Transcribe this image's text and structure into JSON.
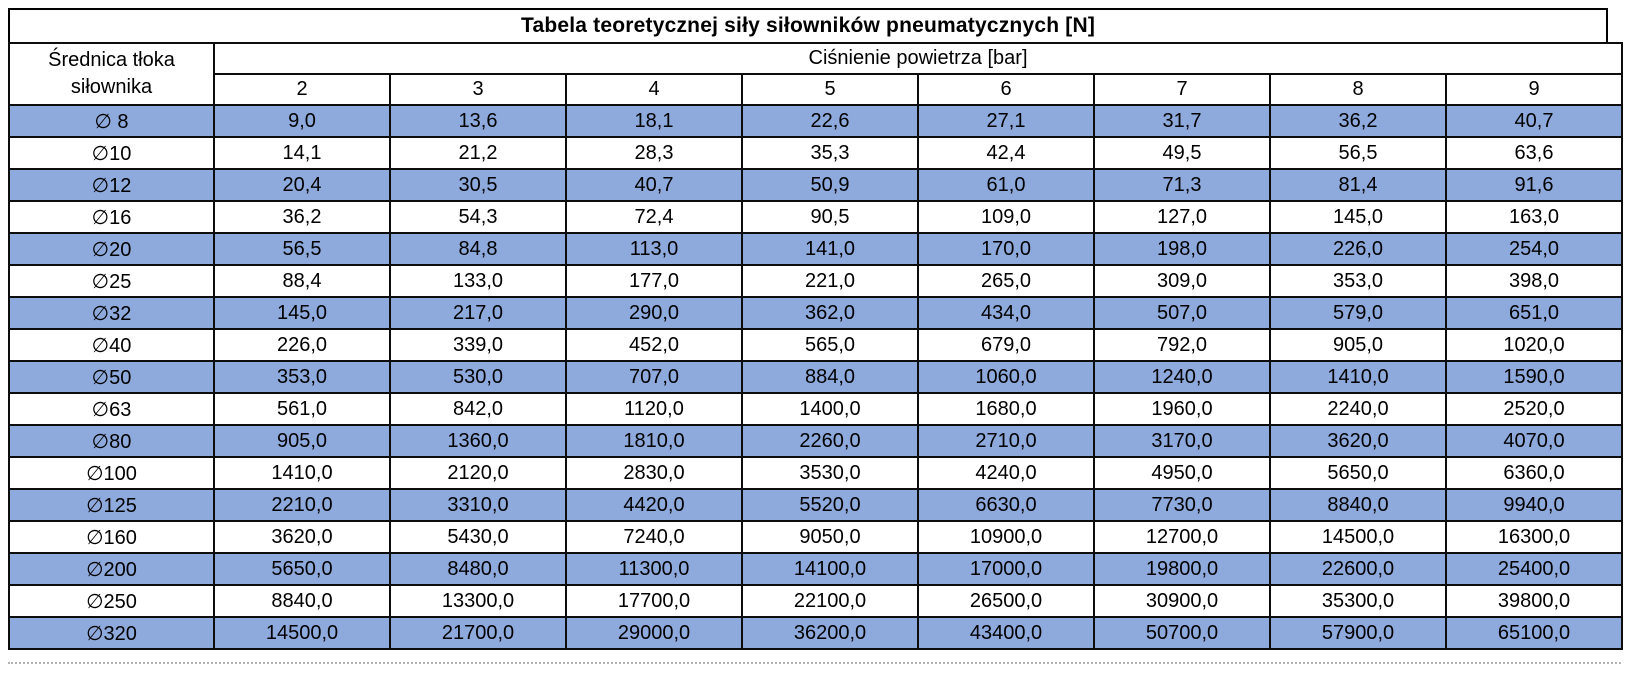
{
  "title": "Tabela teoretycznej siły siłowników pneumatycznych [N]",
  "header": {
    "diameter_line1": "Średnica tłoka",
    "diameter_line2": "siłownika",
    "pressure_label": "Ciśnienie powietrza [bar]"
  },
  "colors": {
    "shaded_row": "#8EA9DB",
    "plain_row": "#ffffff",
    "border": "#000000",
    "page_break_line": "#b3b3b3"
  },
  "chart_data": {
    "type": "table",
    "title": "Tabela teoretycznej siły siłowników pneumatycznych [N]",
    "row_header_label": "Średnica tłoka siłownika",
    "column_group_label": "Ciśnienie powietrza [bar]",
    "columns": [
      "2",
      "3",
      "4",
      "5",
      "6",
      "7",
      "8",
      "9"
    ],
    "rows": [
      {
        "label": "∅ 8",
        "values": [
          "9,0",
          "13,6",
          "18,1",
          "22,6",
          "27,1",
          "31,7",
          "36,2",
          "40,7"
        ]
      },
      {
        "label": "∅10",
        "values": [
          "14,1",
          "21,2",
          "28,3",
          "35,3",
          "42,4",
          "49,5",
          "56,5",
          "63,6"
        ]
      },
      {
        "label": "∅12",
        "values": [
          "20,4",
          "30,5",
          "40,7",
          "50,9",
          "61,0",
          "71,3",
          "81,4",
          "91,6"
        ]
      },
      {
        "label": "∅16",
        "values": [
          "36,2",
          "54,3",
          "72,4",
          "90,5",
          "109,0",
          "127,0",
          "145,0",
          "163,0"
        ]
      },
      {
        "label": "∅20",
        "values": [
          "56,5",
          "84,8",
          "113,0",
          "141,0",
          "170,0",
          "198,0",
          "226,0",
          "254,0"
        ]
      },
      {
        "label": "∅25",
        "values": [
          "88,4",
          "133,0",
          "177,0",
          "221,0",
          "265,0",
          "309,0",
          "353,0",
          "398,0"
        ]
      },
      {
        "label": "∅32",
        "values": [
          "145,0",
          "217,0",
          "290,0",
          "362,0",
          "434,0",
          "507,0",
          "579,0",
          "651,0"
        ]
      },
      {
        "label": "∅40",
        "values": [
          "226,0",
          "339,0",
          "452,0",
          "565,0",
          "679,0",
          "792,0",
          "905,0",
          "1020,0"
        ]
      },
      {
        "label": "∅50",
        "values": [
          "353,0",
          "530,0",
          "707,0",
          "884,0",
          "1060,0",
          "1240,0",
          "1410,0",
          "1590,0"
        ]
      },
      {
        "label": "∅63",
        "values": [
          "561,0",
          "842,0",
          "1120,0",
          "1400,0",
          "1680,0",
          "1960,0",
          "2240,0",
          "2520,0"
        ]
      },
      {
        "label": "∅80",
        "values": [
          "905,0",
          "1360,0",
          "1810,0",
          "2260,0",
          "2710,0",
          "3170,0",
          "3620,0",
          "4070,0"
        ]
      },
      {
        "label": "∅100",
        "values": [
          "1410,0",
          "2120,0",
          "2830,0",
          "3530,0",
          "4240,0",
          "4950,0",
          "5650,0",
          "6360,0"
        ]
      },
      {
        "label": "∅125",
        "values": [
          "2210,0",
          "3310,0",
          "4420,0",
          "5520,0",
          "6630,0",
          "7730,0",
          "8840,0",
          "9940,0"
        ]
      },
      {
        "label": "∅160",
        "values": [
          "3620,0",
          "5430,0",
          "7240,0",
          "9050,0",
          "10900,0",
          "12700,0",
          "14500,0",
          "16300,0"
        ]
      },
      {
        "label": "∅200",
        "values": [
          "5650,0",
          "8480,0",
          "11300,0",
          "14100,0",
          "17000,0",
          "19800,0",
          "22600,0",
          "25400,0"
        ]
      },
      {
        "label": "∅250",
        "values": [
          "8840,0",
          "13300,0",
          "17700,0",
          "22100,0",
          "26500,0",
          "30900,0",
          "35300,0",
          "39800,0"
        ]
      },
      {
        "label": "∅320",
        "values": [
          "14500,0",
          "21700,0",
          "29000,0",
          "36200,0",
          "43400,0",
          "50700,0",
          "57900,0",
          "65100,0"
        ]
      }
    ]
  }
}
